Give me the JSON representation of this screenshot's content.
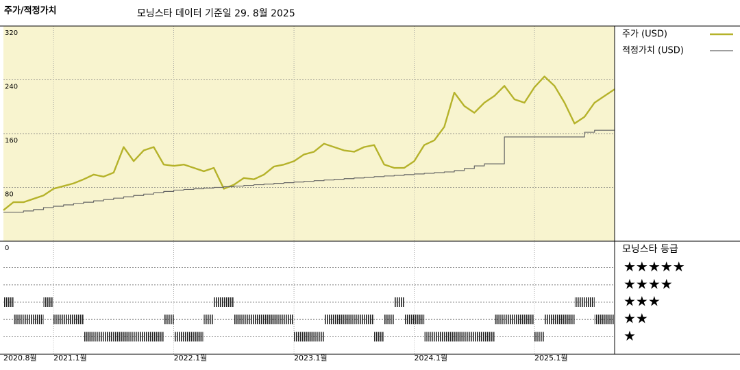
{
  "chart_data": {
    "type": "line",
    "title": "주가/적정가치",
    "subtitle": "모닝스타 데이터 기준일 29. 8월 2025",
    "x": [
      0,
      1,
      2,
      3,
      4,
      5,
      6,
      7,
      8,
      9,
      10,
      11,
      12,
      13,
      14,
      15,
      16,
      17,
      18,
      19,
      20,
      21,
      22,
      23,
      24,
      25,
      26,
      27,
      28,
      29,
      30,
      31,
      32,
      33,
      34,
      35,
      36,
      37,
      38,
      39,
      40,
      41,
      42,
      43,
      44,
      45,
      46,
      47,
      48,
      49,
      50,
      51,
      52,
      53,
      54,
      55,
      56,
      57,
      58,
      59,
      60,
      61
    ],
    "xlim": [
      0,
      61
    ],
    "xticks": [
      {
        "value": 0,
        "label": "2020.8월"
      },
      {
        "value": 5,
        "label": "2021.1월"
      },
      {
        "value": 17,
        "label": "2022.1월"
      },
      {
        "value": 29,
        "label": "2023.1월"
      },
      {
        "value": 41,
        "label": "2024.1월"
      },
      {
        "value": 53,
        "label": "2025.1월"
      }
    ],
    "ylim": [
      0,
      320
    ],
    "yticks": [
      0,
      80,
      160,
      240,
      320
    ],
    "grid": true,
    "series": [
      {
        "name": "주가 (USD)",
        "color": "#b5b22a",
        "values": [
          46,
          58,
          58,
          63,
          68,
          78,
          82,
          86,
          92,
          99,
          96,
          102,
          140,
          119,
          135,
          140,
          114,
          112,
          114,
          109,
          104,
          109,
          78,
          84,
          94,
          92,
          99,
          111,
          114,
          119,
          129,
          133,
          145,
          140,
          135,
          133,
          140,
          143,
          114,
          109,
          109,
          119,
          143,
          150,
          170,
          221,
          201,
          191,
          206,
          216,
          231,
          211,
          206,
          229,
          245,
          231,
          206,
          175,
          185,
          206,
          216,
          226
        ]
      },
      {
        "name": "적정가치 (USD)",
        "color": "#666666",
        "step": true,
        "values": [
          43,
          43,
          45,
          47,
          50,
          52,
          54,
          56,
          58,
          60,
          62,
          64,
          66,
          68,
          70,
          72,
          74,
          76,
          77,
          78,
          79,
          80,
          81,
          82,
          83,
          84,
          85,
          86,
          87,
          88,
          89,
          90,
          91,
          92,
          93,
          94,
          95,
          96,
          97,
          98,
          99,
          100,
          101,
          102,
          103,
          105,
          108,
          112,
          115,
          115,
          155,
          155,
          155,
          155,
          155,
          155,
          155,
          155,
          162,
          165,
          165,
          165
        ]
      }
    ],
    "rating": {
      "title": "모닝스타 등급",
      "levels": [
        5,
        4,
        3,
        2,
        1
      ],
      "level_labels": [
        "★★★★★",
        "★★★★",
        "★★★",
        "★★",
        "★"
      ],
      "values": [
        3,
        2,
        2,
        2,
        3,
        2,
        2,
        2,
        1,
        1,
        1,
        1,
        1,
        1,
        1,
        1,
        2,
        1,
        1,
        1,
        2,
        3,
        3,
        2,
        2,
        2,
        2,
        2,
        2,
        1,
        1,
        1,
        2,
        2,
        2,
        2,
        2,
        1,
        2,
        3,
        2,
        2,
        1,
        1,
        1,
        1,
        1,
        1,
        1,
        2,
        2,
        2,
        2,
        1,
        2,
        2,
        2,
        3,
        3,
        2,
        2,
        2
      ]
    }
  }
}
